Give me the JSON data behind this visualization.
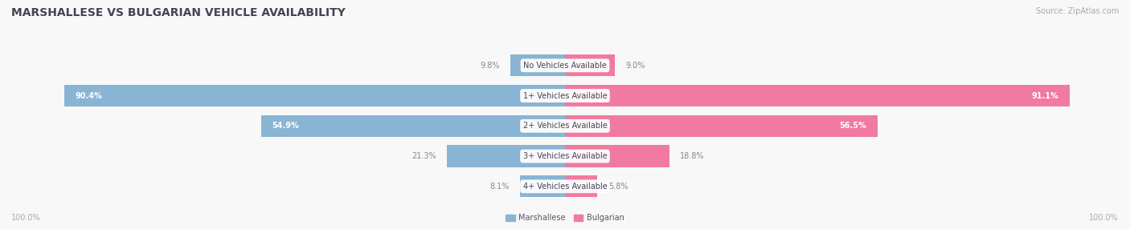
{
  "title": "MARSHALLESE VS BULGARIAN VEHICLE AVAILABILITY",
  "source": "Source: ZipAtlas.com",
  "categories": [
    "No Vehicles Available",
    "1+ Vehicles Available",
    "2+ Vehicles Available",
    "3+ Vehicles Available",
    "4+ Vehicles Available"
  ],
  "marshallese": [
    9.8,
    90.4,
    54.9,
    21.3,
    8.1
  ],
  "bulgarian": [
    9.0,
    91.1,
    56.5,
    18.8,
    5.8
  ],
  "color_marshallese": "#8ab4d4",
  "color_bulgarian": "#f07aa0",
  "color_marshallese_light": "#aecfe8",
  "color_bulgarian_light": "#f5a8c0",
  "row_bg_light": "#efefef",
  "row_bg_dark": "#e4e4e8",
  "fig_bg": "#f8f8f8",
  "title_color": "#444455",
  "source_color": "#aaaaaa",
  "footer_color": "#aaaaaa",
  "label_outside_color": "#888888",
  "label_inside_color": "#ffffff",
  "cat_label_color": "#444455",
  "legend_label_marshallese": "Marshallese",
  "legend_label_bulgarian": "Bulgarian",
  "max_val": 100.0,
  "title_fontsize": 10,
  "label_fontsize": 7,
  "cat_fontsize": 7,
  "source_fontsize": 7,
  "footer_fontsize": 7,
  "legend_fontsize": 7
}
